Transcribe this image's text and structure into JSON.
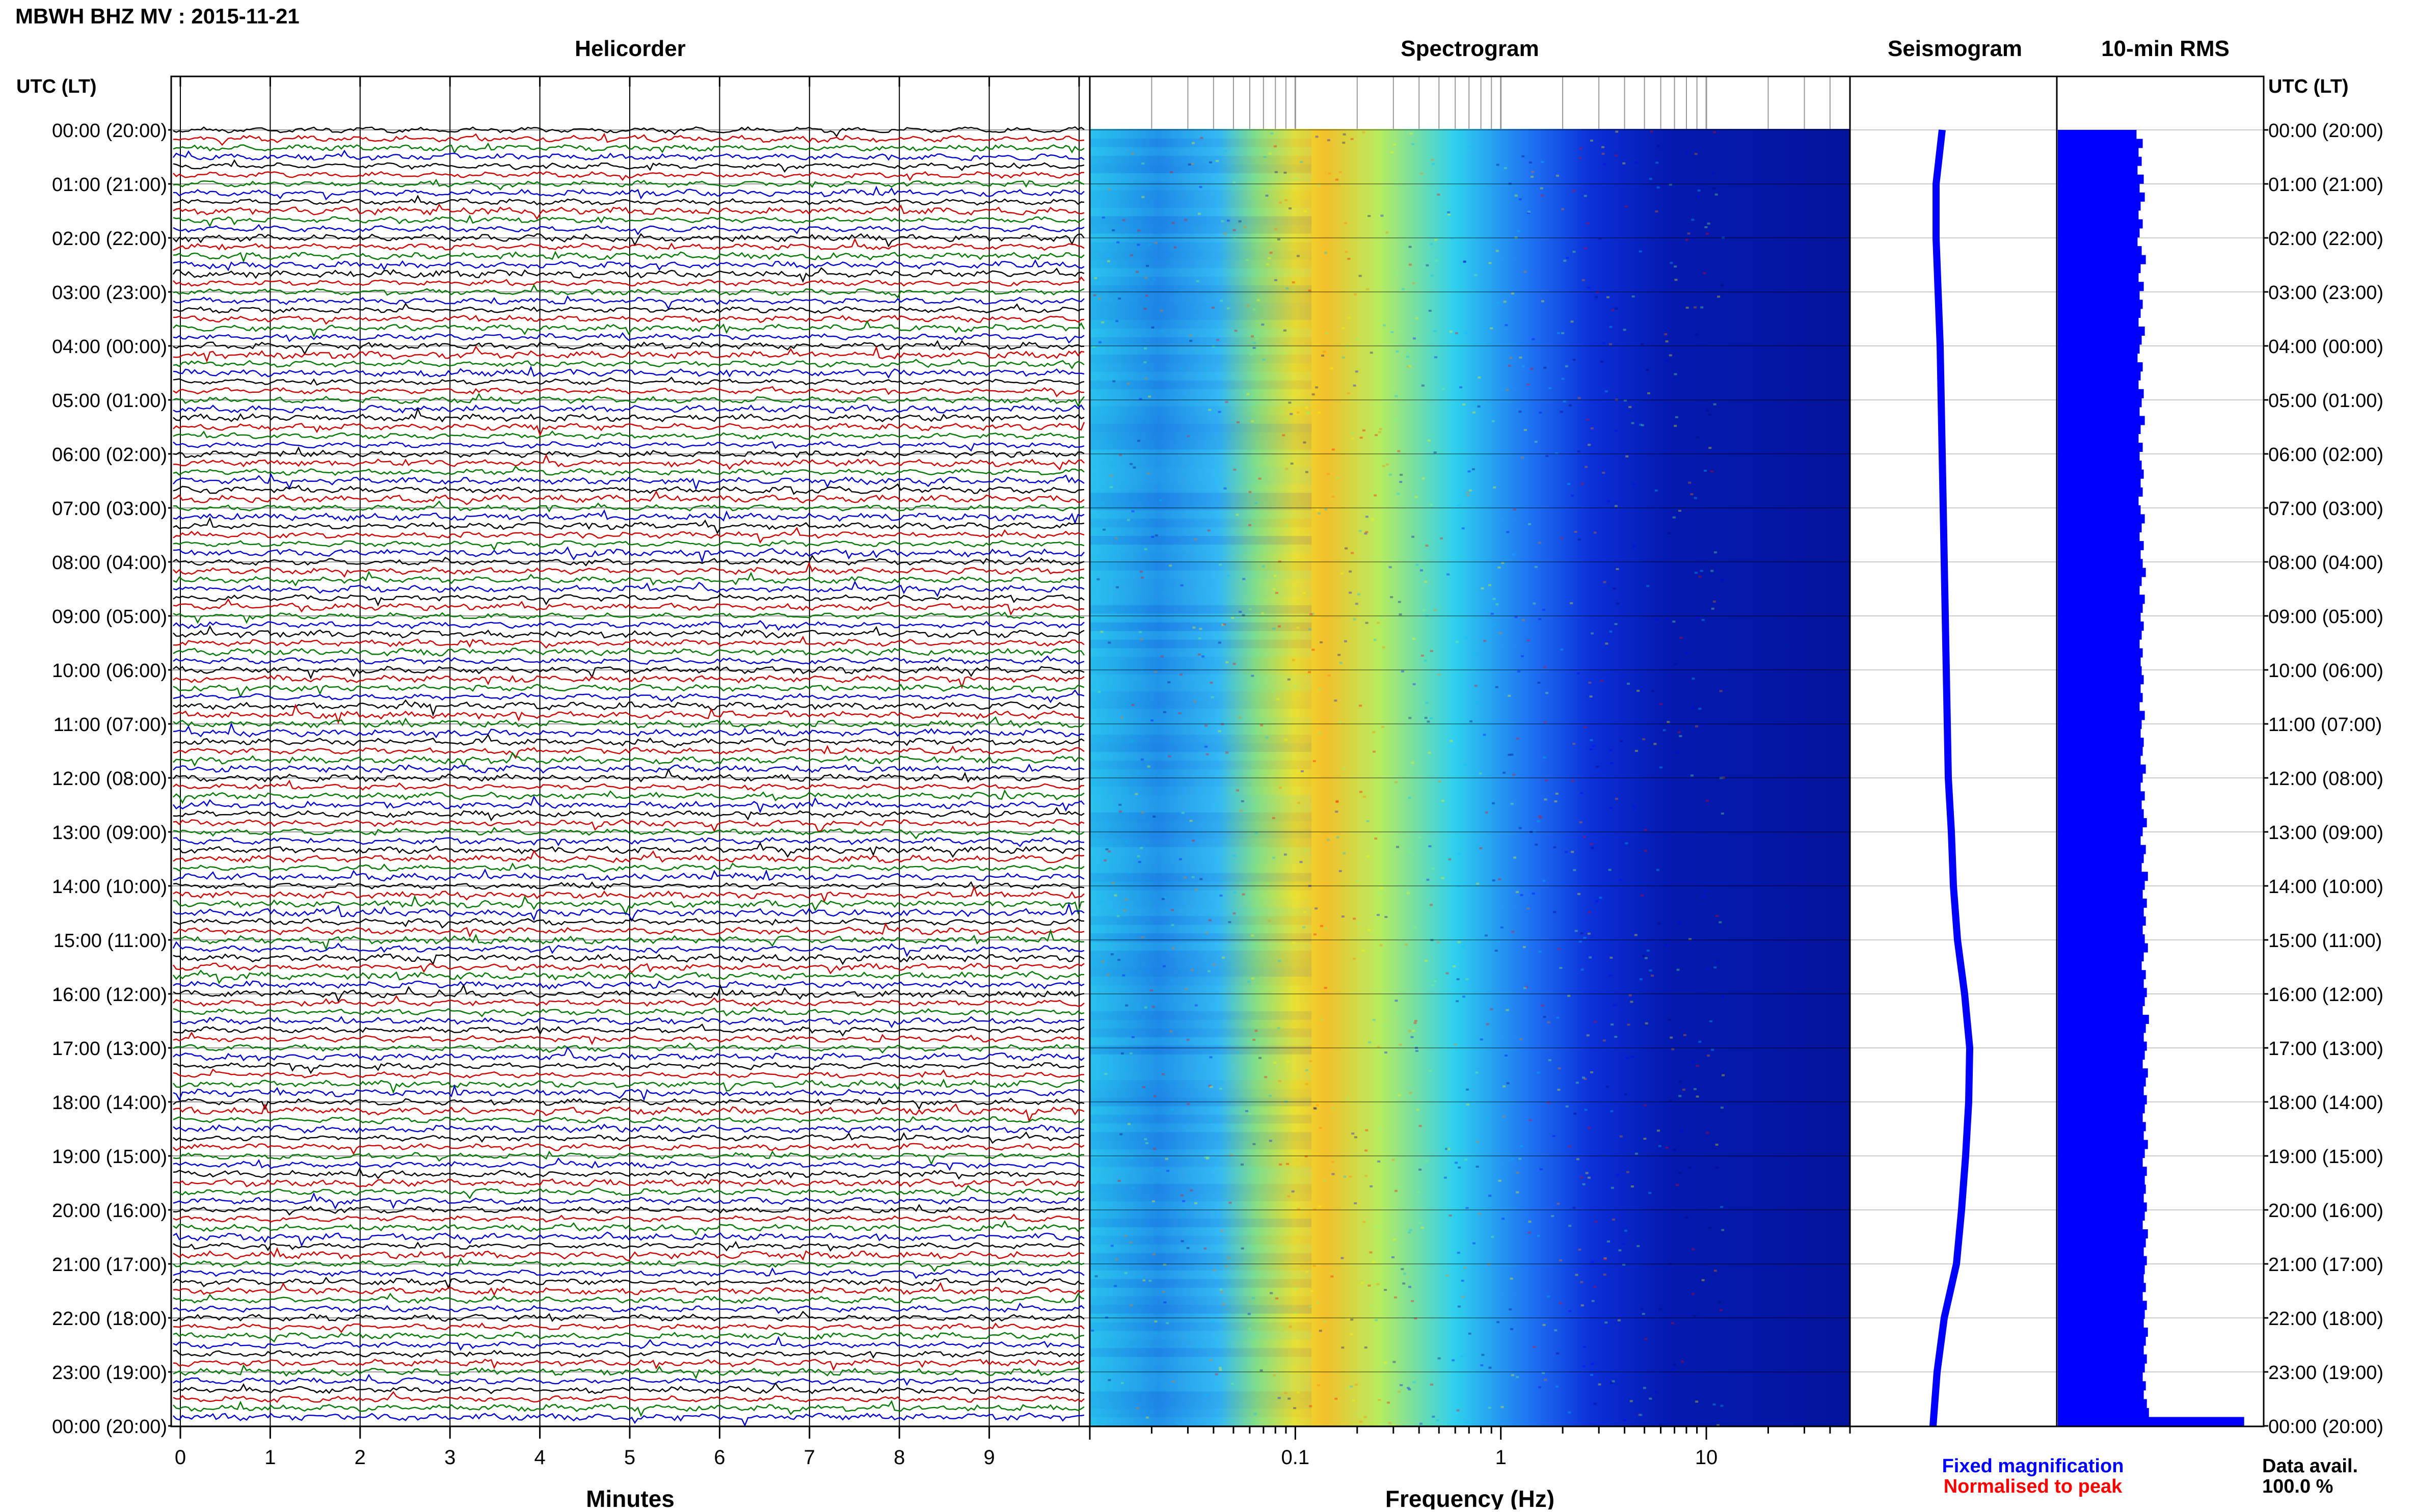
{
  "header": {
    "title": "MBWH BHZ MV : 2015-11-21",
    "utc_lt_label": "UTC (LT)"
  },
  "panels": {
    "helicorder": "Helicorder",
    "spectrogram": "Spectrogram",
    "seismogram": "Seismogram",
    "rms": "10-min RMS"
  },
  "time_labels": [
    "00:00 (20:00)",
    "01:00 (21:00)",
    "02:00 (22:00)",
    "03:00 (23:00)",
    "04:00 (00:00)",
    "05:00 (01:00)",
    "06:00 (02:00)",
    "07:00 (03:00)",
    "08:00 (04:00)",
    "09:00 (05:00)",
    "10:00 (06:00)",
    "11:00 (07:00)",
    "12:00 (08:00)",
    "13:00 (09:00)",
    "14:00 (10:00)",
    "15:00 (11:00)",
    "16:00 (12:00)",
    "17:00 (13:00)",
    "18:00 (14:00)",
    "19:00 (15:00)",
    "20:00 (16:00)",
    "21:00 (17:00)",
    "22:00 (18:00)",
    "23:00 (19:00)",
    "00:00 (20:00)"
  ],
  "legend": {
    "fixed": "Fixed magnification",
    "fixed_color": "#0000ff",
    "normalised": "Normalised to peak",
    "normalised_color": "#ff0000"
  },
  "data_avail": {
    "label": "Data avail.",
    "value": "100.0 %"
  },
  "chart_data": [
    {
      "type": "line",
      "panel": "helicorder",
      "xlabel": "Minutes",
      "ylabel": "",
      "xlim": [
        0,
        10
      ],
      "x_ticks": [
        "0",
        "1",
        "2",
        "3",
        "4",
        "5",
        "6",
        "7",
        "8",
        "9"
      ],
      "lines_per_hour": 6,
      "trace_colors": [
        "#000000",
        "#cc0000",
        "#007700",
        "#0000cc"
      ]
    },
    {
      "type": "heatmap",
      "panel": "spectrogram",
      "xlabel": "Frequency (Hz)",
      "ylabel": "",
      "xscale": "log",
      "xlim": [
        0.01,
        50
      ],
      "x_ticks": [
        "0.1",
        "1",
        "10"
      ],
      "peak_band_hz": [
        0.15,
        0.35
      ],
      "colormap": [
        "#00007f",
        "#0000ff",
        "#00bfff",
        "#7fff7f",
        "#ffff00",
        "#ff7f00",
        "#ff0000"
      ]
    },
    {
      "type": "line",
      "panel": "seismogram",
      "xlabel": "",
      "ylabel": "",
      "offset_by_hour": [
        0,
        -0.3,
        -0.3,
        -0.2,
        -0.1,
        -0.05,
        0.0,
        0.05,
        0.1,
        0.15,
        0.2,
        0.25,
        0.3,
        0.45,
        0.55,
        0.75,
        1.1,
        1.35,
        1.3,
        1.15,
        0.95,
        0.7,
        0.1,
        -0.25,
        -0.45
      ]
    },
    {
      "type": "bar",
      "panel": "rms",
      "xlabel": "",
      "ylabel": "",
      "orientation": "horizontal",
      "bins_per_hour": 6,
      "relative_values": [
        0.76,
        0.82,
        0.78,
        0.81,
        0.77,
        0.83,
        0.79,
        0.84,
        0.8,
        0.78,
        0.82,
        0.79,
        0.77,
        0.81,
        0.85,
        0.8,
        0.78,
        0.83,
        0.79,
        0.82,
        0.8,
        0.78,
        0.84,
        0.81,
        0.79,
        0.77,
        0.82,
        0.8,
        0.78,
        0.83,
        0.81,
        0.79,
        0.84,
        0.8,
        0.78,
        0.82,
        0.79,
        0.81,
        0.83,
        0.8,
        0.82,
        0.78,
        0.8,
        0.84,
        0.81,
        0.79,
        0.83,
        0.8,
        0.82,
        0.85,
        0.81,
        0.79,
        0.84,
        0.82,
        0.8,
        0.83,
        0.81,
        0.79,
        0.82,
        0.8,
        0.81,
        0.83,
        0.8,
        0.82,
        0.79,
        0.84,
        0.81,
        0.8,
        0.83,
        0.82,
        0.8,
        0.85,
        0.82,
        0.8,
        0.84,
        0.81,
        0.83,
        0.86,
        0.82,
        0.8,
        0.85,
        0.83,
        0.81,
        0.87,
        0.84,
        0.82,
        0.86,
        0.83,
        0.85,
        0.82,
        0.84,
        0.87,
        0.83,
        0.81,
        0.85,
        0.83,
        0.86,
        0.84,
        0.82,
        0.88,
        0.85,
        0.83,
        0.86,
        0.84,
        0.82,
        0.87,
        0.85,
        0.83,
        0.86,
        0.84,
        0.82,
        0.85,
        0.83,
        0.87,
        0.84,
        0.82,
        0.86,
        0.84,
        0.85,
        0.83,
        0.86,
        0.84,
        0.82,
        0.87,
        0.85,
        0.83,
        0.86,
        0.84,
        0.83,
        0.85,
        0.82,
        0.86,
        0.84,
        0.83,
        0.87,
        0.85,
        0.83,
        0.86,
        0.84,
        0.82,
        0.85,
        0.83,
        0.86,
        0.88,
        1.8
      ]
    }
  ]
}
